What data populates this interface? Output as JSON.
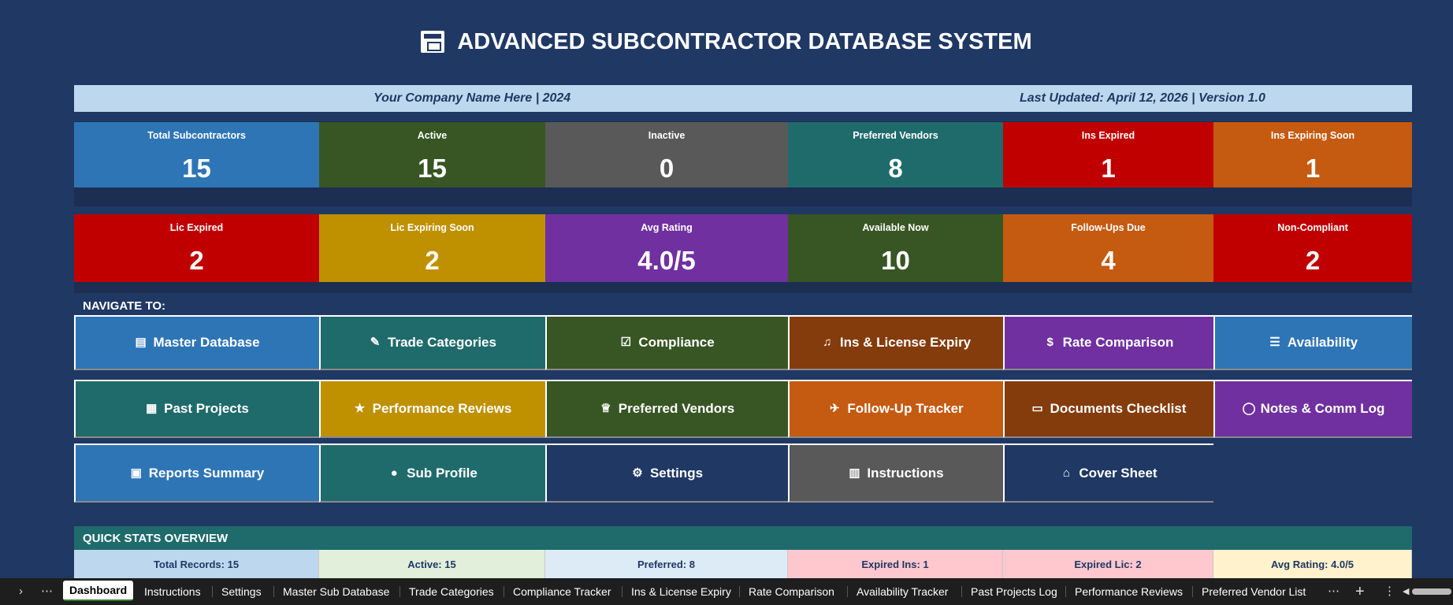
{
  "title": "ADVANCED SUBCONTRACTOR DATABASE SYSTEM",
  "info": {
    "left": "Your Company Name Here  |  2024",
    "right": "Last Updated: April 12, 2026  |  Version 1.0"
  },
  "kpi_row1": [
    {
      "label": "Total Subcontractors",
      "value": "15",
      "color": "#2e75b6"
    },
    {
      "label": "Active",
      "value": "15",
      "color": "#375623"
    },
    {
      "label": "Inactive",
      "value": "0",
      "color": "#595959"
    },
    {
      "label": "Preferred Vendors",
      "value": "8",
      "color": "#1f6b6b"
    },
    {
      "label": "Ins Expired",
      "value": "1",
      "color": "#c00000"
    },
    {
      "label": "Ins Expiring Soon",
      "value": "1",
      "color": "#c55a11"
    }
  ],
  "kpi_row2": [
    {
      "label": "Lic Expired",
      "value": "2",
      "color": "#c00000"
    },
    {
      "label": "Lic Expiring Soon",
      "value": "2",
      "color": "#bf9000"
    },
    {
      "label": "Avg Rating",
      "value": "4.0/5",
      "color": "#7030a0"
    },
    {
      "label": "Available Now",
      "value": "10",
      "color": "#375623"
    },
    {
      "label": "Follow-Ups Due",
      "value": "4",
      "color": "#c55a11"
    },
    {
      "label": "Non-Compliant",
      "value": "2",
      "color": "#c00000"
    }
  ],
  "navigate_label": "NAVIGATE TO:",
  "nav_row1": [
    {
      "label": "Master Database",
      "icon": "document-icon",
      "glyph": "▤",
      "color": "#2e75b6"
    },
    {
      "label": "Trade Categories",
      "icon": "wrench-icon",
      "glyph": "✎",
      "color": "#1f6b6b"
    },
    {
      "label": "Compliance",
      "icon": "checkbox-icon",
      "glyph": "☑",
      "color": "#375623"
    },
    {
      "label": "Ins & License Expiry",
      "icon": "bell-icon",
      "glyph": "♫",
      "color": "#843c0c"
    },
    {
      "label": "Rate Comparison",
      "icon": "money-bag-icon",
      "glyph": "$",
      "color": "#7030a0"
    },
    {
      "label": "Availability",
      "icon": "list-icon",
      "glyph": "☰",
      "color": "#2e75b6"
    }
  ],
  "nav_row2": [
    {
      "label": "Past Projects",
      "icon": "building-icon",
      "glyph": "▦",
      "color": "#1f6b6b"
    },
    {
      "label": "Performance Reviews",
      "icon": "star-icon",
      "glyph": "★",
      "color": "#bf9000"
    },
    {
      "label": "Preferred Vendors",
      "icon": "trophy-icon",
      "glyph": "♕",
      "color": "#375623"
    },
    {
      "label": "Follow-Up Tracker",
      "icon": "pin-icon",
      "glyph": "✈",
      "color": "#c55a11"
    },
    {
      "label": "Documents Checklist",
      "icon": "folder-icon",
      "glyph": "▭",
      "color": "#843c0c"
    },
    {
      "label": "Notes & Comm Log",
      "icon": "speech-bubble-icon",
      "glyph": "◯",
      "color": "#7030a0"
    }
  ],
  "nav_row3": [
    {
      "label": "Reports Summary",
      "icon": "inbox-icon",
      "glyph": "▣",
      "color": "#2e75b6"
    },
    {
      "label": "Sub Profile",
      "icon": "person-icon",
      "glyph": "●",
      "color": "#1f6b6b"
    },
    {
      "label": "Settings",
      "icon": "gear-icon",
      "glyph": "⚙",
      "color": "#203864"
    },
    {
      "label": "Instructions",
      "icon": "book-icon",
      "glyph": "▥",
      "color": "#595959"
    },
    {
      "label": "Cover Sheet",
      "icon": "house-icon",
      "glyph": "⌂",
      "color": "#203864"
    }
  ],
  "quick_stats_title": "QUICK STATS OVERVIEW",
  "quick_stats": [
    {
      "label": "Total Records: 15",
      "color": "#bdd7ee"
    },
    {
      "label": "Active: 15",
      "color": "#e2efda"
    },
    {
      "label": "Preferred: 8",
      "color": "#ddebf7"
    },
    {
      "label": "Expired Ins: 1",
      "color": "#ffc7ce"
    },
    {
      "label": "Expired Lic: 2",
      "color": "#ffc7ce"
    },
    {
      "label": "Avg Rating: 4.0/5",
      "color": "#fff2cc"
    }
  ],
  "sheet_tabs": [
    "Dashboard",
    "Instructions",
    "Settings",
    "Master Sub Database",
    "Trade Categories",
    "Compliance Tracker",
    "Ins & License Expiry",
    "Rate Comparison",
    "Availability Tracker",
    "Past Projects Log",
    "Performance Reviews",
    "Preferred Vendor List"
  ],
  "active_tab": "Dashboard"
}
